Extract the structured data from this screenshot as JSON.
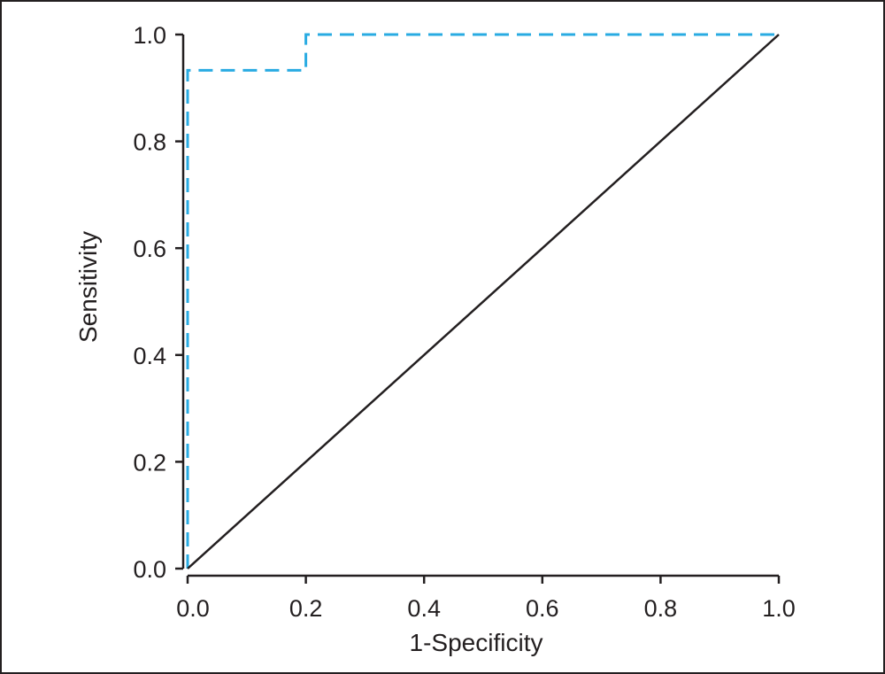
{
  "chart_data": {
    "type": "line",
    "title": "",
    "xlabel": "1-Specificity",
    "ylabel": "Sensitivity",
    "xlim": [
      0,
      1
    ],
    "ylim": [
      0,
      1
    ],
    "x_ticks": [
      "0.0",
      "0.2",
      "0.4",
      "0.6",
      "0.8",
      "1.0"
    ],
    "y_ticks": [
      "0.0",
      "0.2",
      "0.4",
      "0.6",
      "0.8",
      "1.0"
    ],
    "grid": false,
    "legend": "none",
    "series": [
      {
        "style": "dashed",
        "color": "#29abe2",
        "x": [
          0,
          0,
          0.2,
          0.2,
          1.0
        ],
        "y": [
          0,
          0.933,
          0.933,
          1.0,
          1.0
        ]
      },
      {
        "style": "solid",
        "color": "#231f20",
        "x": [
          0,
          1.0
        ],
        "y": [
          0,
          1.0
        ]
      }
    ]
  }
}
